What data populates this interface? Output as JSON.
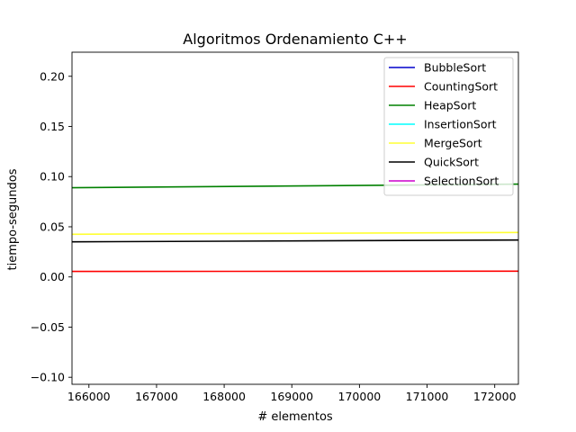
{
  "chart_data": {
    "type": "line",
    "title": "Algoritmos Ordenamiento C++",
    "xlabel": "# elementos",
    "ylabel": "tiempo-segundos",
    "xlim": [
      165750,
      172350
    ],
    "ylim": [
      -0.107,
      0.224
    ],
    "xticks": [
      166000,
      167000,
      168000,
      169000,
      170000,
      171000,
      172000
    ],
    "yticks": [
      -0.1,
      -0.05,
      0.0,
      0.05,
      0.1,
      0.15,
      0.2
    ],
    "ytick_labels": [
      "−0.10",
      "−0.05",
      "0.00",
      "0.05",
      "0.10",
      "0.15",
      "0.20"
    ],
    "grid": false,
    "legend_position": "top-right",
    "series": [
      {
        "name": "BubbleSort",
        "color": "#0000cc",
        "x": [],
        "y": []
      },
      {
        "name": "CountingSort",
        "color": "#ff0000",
        "x": [
          165750,
          172350
        ],
        "y": [
          0.0055,
          0.0058
        ]
      },
      {
        "name": "HeapSort",
        "color": "#008000",
        "x": [
          165750,
          172350
        ],
        "y": [
          0.0889,
          0.0925
        ]
      },
      {
        "name": "InsertionSort",
        "color": "#00ffff",
        "x": [],
        "y": []
      },
      {
        "name": "MergeSort",
        "color": "#ffff33",
        "x": [
          165750,
          172350
        ],
        "y": [
          0.0425,
          0.0443
        ]
      },
      {
        "name": "QuickSort",
        "color": "#000000",
        "x": [
          165750,
          172350
        ],
        "y": [
          0.035,
          0.0368
        ]
      },
      {
        "name": "SelectionSort",
        "color": "#cc00cc",
        "x": [],
        "y": []
      }
    ]
  }
}
